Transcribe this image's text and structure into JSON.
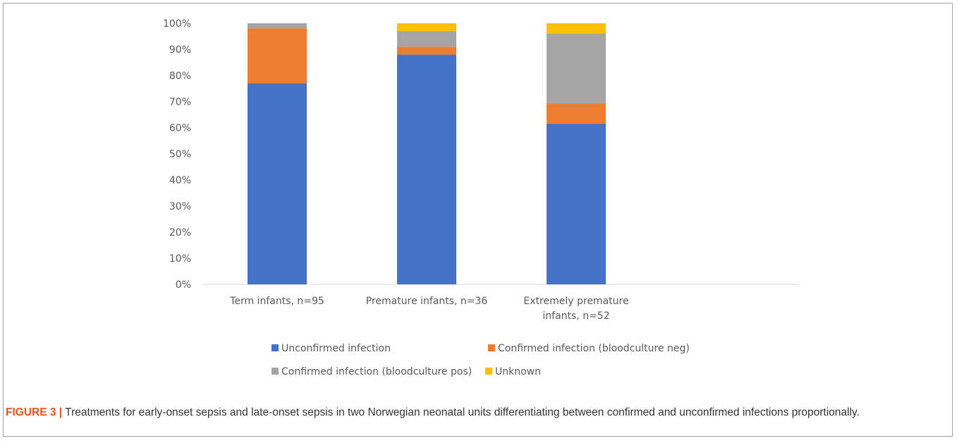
{
  "figure": {
    "label": "FIGURE 3 |",
    "caption": "Treatments for early-onset sepsis and late-onset sepsis in two Norwegian neonatal units differentiating between confirmed and unconfirmed infections proportionally."
  },
  "chart_data": {
    "type": "bar",
    "stacked": true,
    "categories": [
      [
        "Term infants, n=95"
      ],
      [
        "Premature infants, n=36"
      ],
      [
        "Extremely premature",
        "infants, n=52"
      ]
    ],
    "series": [
      {
        "name": "Unconfirmed infection",
        "color": "#4472C4",
        "values": [
          77,
          88,
          61.5
        ]
      },
      {
        "name": "Confirmed infection (bloodculture neg)",
        "color": "#ED7D31",
        "values": [
          21,
          3,
          7.7
        ]
      },
      {
        "name": "Confirmed infection (bloodculture pos)",
        "color": "#A5A5A5",
        "values": [
          2,
          6,
          26.9
        ]
      },
      {
        "name": "Unknown",
        "color": "#FFC000",
        "values": [
          0,
          3,
          3.9
        ]
      }
    ],
    "ylim": [
      0,
      100
    ],
    "yticks": [
      "0%",
      "10%",
      "20%",
      "30%",
      "40%",
      "50%",
      "60%",
      "70%",
      "80%",
      "90%",
      "100%"
    ],
    "grid": false,
    "legend": "bottom"
  }
}
